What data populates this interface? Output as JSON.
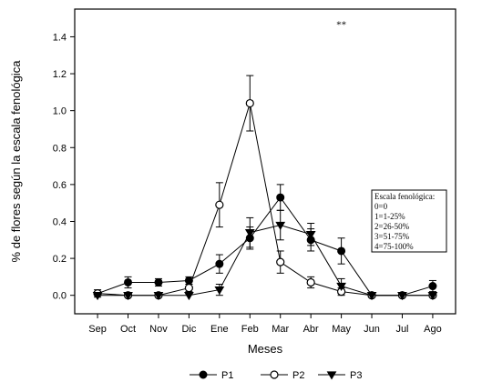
{
  "chart_data": {
    "type": "line",
    "title": "",
    "xlabel": "Meses",
    "ylabel": "% de flores según la escala fenológica",
    "categories": [
      "Sep",
      "Oct",
      "Nov",
      "Dic",
      "Ene",
      "Feb",
      "Mar",
      "Abr",
      "May",
      "Jun",
      "Jul",
      "Ago"
    ],
    "ylim": [
      -0.1,
      1.55
    ],
    "yticks": [
      "0.0",
      "0.2",
      "0.4",
      "0.6",
      "0.8",
      "1.0",
      "1.2",
      "1.4"
    ],
    "grid": false,
    "legend_position": "bottom",
    "series": [
      {
        "name": "P1",
        "marker": "filled-circle",
        "values": [
          0.01,
          0.07,
          0.07,
          0.08,
          0.17,
          0.31,
          0.53,
          0.3,
          0.24,
          0.0,
          0.0,
          0.05
        ],
        "errors": [
          0.02,
          0.03,
          0.02,
          0.02,
          0.05,
          0.06,
          0.07,
          0.06,
          0.07,
          0.0,
          0.0,
          0.03
        ]
      },
      {
        "name": "P2",
        "marker": "open-circle",
        "values": [
          0.01,
          0.0,
          0.0,
          0.04,
          0.49,
          1.04,
          0.18,
          0.07,
          0.02,
          0.0,
          0.0,
          0.0
        ],
        "errors": [
          0.01,
          0.0,
          0.0,
          0.02,
          0.12,
          0.15,
          0.06,
          0.03,
          0.02,
          0.0,
          0.0,
          0.0
        ]
      },
      {
        "name": "P3",
        "marker": "filled-triangle-down",
        "values": [
          0.0,
          0.0,
          0.0,
          0.0,
          0.03,
          0.34,
          0.38,
          0.33,
          0.05,
          0.0,
          0.0,
          0.0
        ],
        "errors": [
          0.0,
          0.0,
          0.0,
          0.0,
          0.03,
          0.08,
          0.08,
          0.06,
          0.04,
          0.0,
          0.0,
          0.0
        ]
      }
    ],
    "annotations": [
      {
        "text": "**",
        "category": "May",
        "y": 1.45
      }
    ],
    "scale_box": {
      "title": "Escala fenológica:",
      "lines": [
        "0=0",
        "1=1-25%",
        "2=26-50%",
        "3=51-75%",
        "4=75-100%"
      ]
    }
  }
}
